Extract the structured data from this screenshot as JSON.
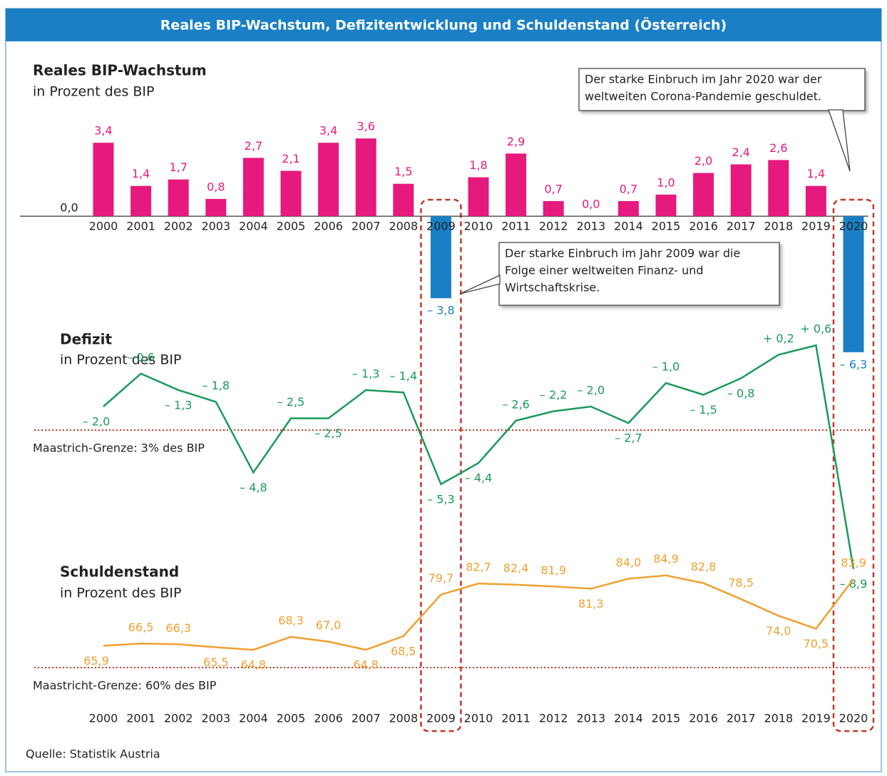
{
  "header": {
    "title": "Reales BIP-Wachstum, Defizitentwicklung und Schuldenstand (Österreich)"
  },
  "source": "Quelle: Statistik Austria",
  "chart_data": [
    {
      "type": "bar",
      "title": "Reales BIP-Wachstum",
      "subtitle": "in Prozent des BIP",
      "categories": [
        "2000",
        "2001",
        "2002",
        "2003",
        "2004",
        "2005",
        "2006",
        "2007",
        "2008",
        "2009",
        "2010",
        "2011",
        "2012",
        "2013",
        "2014",
        "2015",
        "2016",
        "2017",
        "2018",
        "2019",
        "2020"
      ],
      "values": [
        3.4,
        1.4,
        1.7,
        0.8,
        2.7,
        2.1,
        3.4,
        3.6,
        1.5,
        -3.8,
        1.8,
        2.9,
        0.7,
        0.0,
        0.7,
        1.0,
        2.0,
        2.4,
        2.6,
        1.4,
        -6.3
      ],
      "value_labels": [
        "3,4",
        "1,4",
        "1,7",
        "0,8",
        "2,7",
        "2,1",
        "3,4",
        "3,6",
        "1,5",
        "– 3,8",
        "1,8",
        "2,9",
        "0,7",
        "0,0",
        "0,7",
        "1,0",
        "2,0",
        "2,4",
        "2,6",
        "1,4",
        "– 6,3"
      ],
      "color": "#e6197d",
      "negative_color": "#1a7fc4",
      "ylim": [
        -7,
        4
      ],
      "yticks": [
        {
          "value": 0,
          "label": "0,0"
        }
      ],
      "annotations": [
        {
          "lines": [
            "Der starke Einbruch im Jahr 2020 war der",
            "weltweiten Corona-Pandemie geschuldet."
          ]
        },
        {
          "lines": [
            "Der starke Einbruch im Jahr 2009 war die",
            "Folge einer weltweiten Finanz- und",
            "Wirtschaftskrise."
          ]
        }
      ]
    },
    {
      "type": "line",
      "title": "Defizit",
      "subtitle": "in Prozent des BIP",
      "values": [
        -2.0,
        -0.6,
        -1.3,
        -1.8,
        -4.8,
        -2.5,
        -2.5,
        -1.3,
        -1.4,
        -5.3,
        -4.4,
        -2.6,
        -2.2,
        -2.0,
        -2.7,
        -1.0,
        -1.5,
        -0.8,
        0.2,
        0.6,
        -8.9
      ],
      "value_labels": [
        "– 2,0",
        "– 0,6",
        "– 1,3",
        "– 1,8",
        "– 4,8",
        "– 2,5",
        "– 2,5",
        "– 1,3",
        "– 1,4",
        "– 5,3",
        "– 4,4",
        "– 2,6",
        "– 2,2",
        "– 2,0",
        "– 2,7",
        "– 1,0",
        "– 1,5",
        "– 0,8",
        "+ 0,2",
        "+ 0,6",
        "– 8,9"
      ],
      "color": "#1a9a5a",
      "ylim": [
        -9,
        1
      ],
      "reference_line": {
        "value": -3,
        "label": "Maastrich-Grenze: 3% des BIP",
        "color": "#c0392b"
      }
    },
    {
      "type": "line",
      "title": "Schuldenstand",
      "subtitle": "in Prozent des BIP",
      "categories": [
        "2000",
        "2001",
        "2002",
        "2003",
        "2004",
        "2005",
        "2006",
        "2007",
        "2008",
        "2009",
        "2010",
        "2011",
        "2012",
        "2013",
        "2014",
        "2015",
        "2016",
        "2017",
        "2018",
        "2019",
        "2020"
      ],
      "values": [
        65.9,
        66.5,
        66.3,
        65.5,
        64.8,
        68.3,
        67.0,
        64.8,
        68.5,
        79.7,
        82.7,
        82.4,
        81.9,
        81.3,
        84.0,
        84.9,
        82.8,
        78.5,
        74.0,
        70.5,
        83.9
      ],
      "value_labels": [
        "65,9",
        "66,5",
        "66,3",
        "65,5",
        "64,8",
        "68,3",
        "67,0",
        "64,8",
        "68,5",
        "79,7",
        "82,7",
        "82,4",
        "81,9",
        "81,3",
        "84,0",
        "84,9",
        "82,8",
        "78,5",
        "74,0",
        "70,5",
        "83,9"
      ],
      "color": "#f0a030",
      "ylim": [
        60,
        86
      ],
      "reference_line": {
        "value": 60,
        "label": "Maastricht-Grenze: 60% des BIP",
        "color": "#c0392b"
      }
    }
  ]
}
